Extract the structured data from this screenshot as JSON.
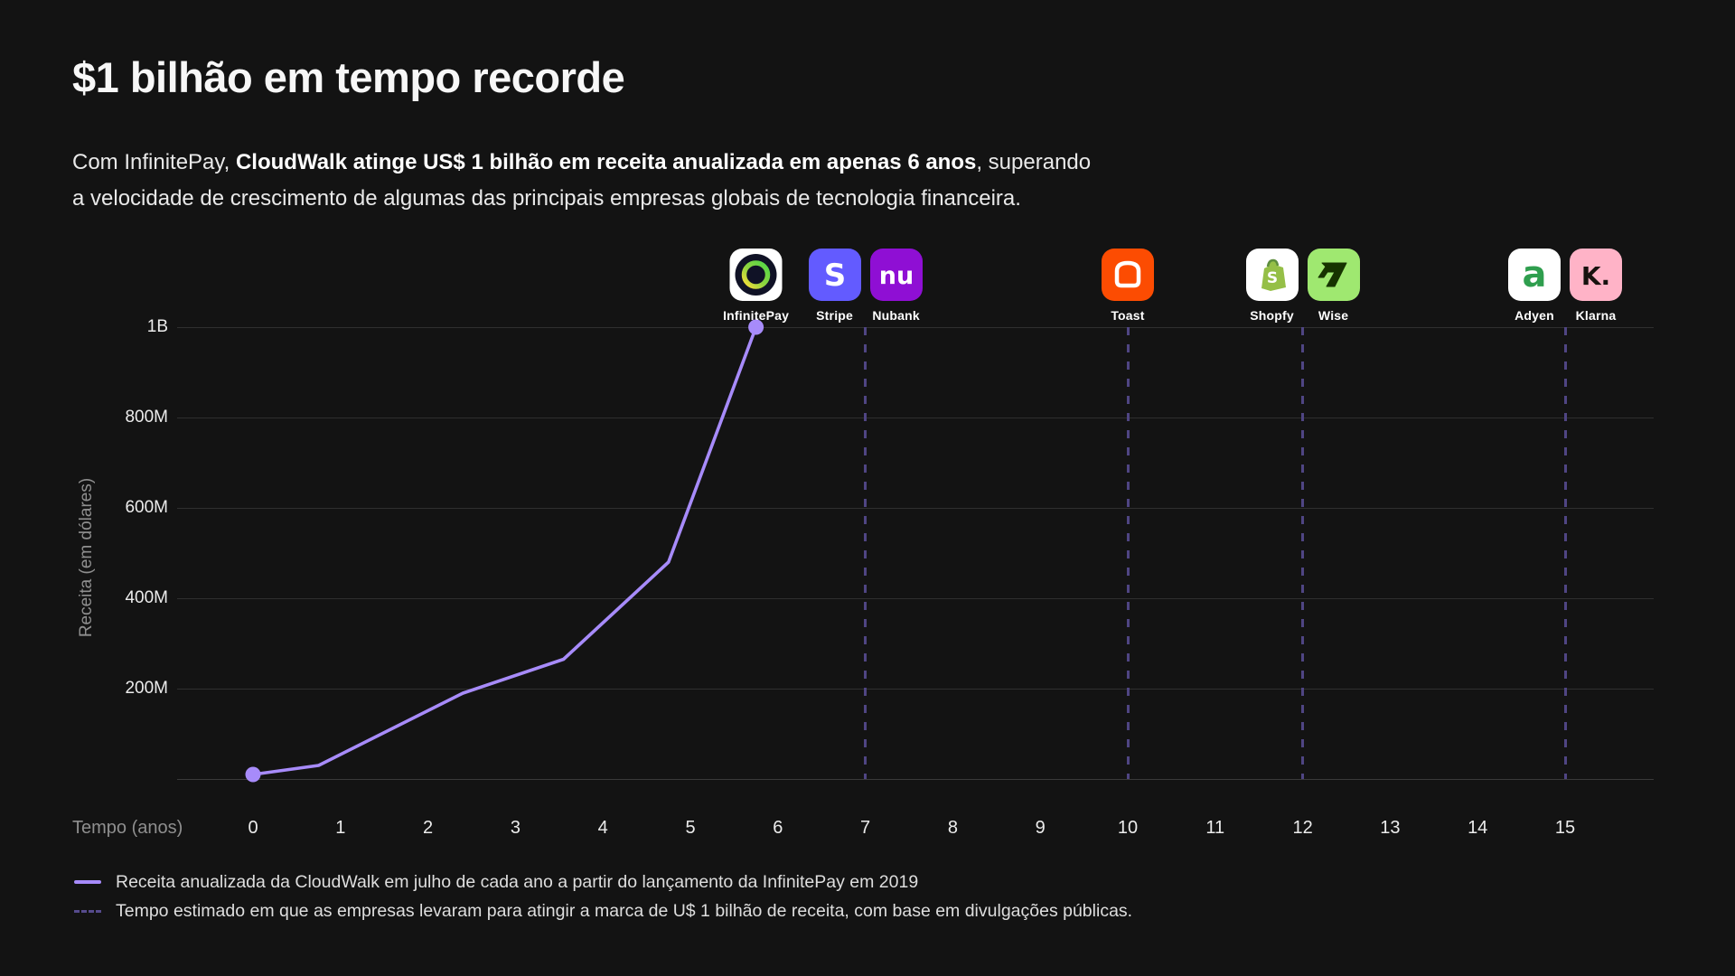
{
  "page": {
    "background": "#131313"
  },
  "header": {
    "title": "$1 bilhão em tempo recorde",
    "subtitle": {
      "prefix": "Com InfinitePay, ",
      "bold": "CloudWalk atinge US$ 1 bilhão em receita anualizada em apenas 6 anos",
      "suffix": ", superando",
      "line2": "a velocidade de crescimento de algumas das principais empresas globais de tecnologia financeira."
    }
  },
  "chart_data": {
    "type": "line",
    "title": "$1 bilhão em tempo recorde",
    "xlabel": "Tempo (anos)",
    "ylabel": "Receita (em dólares)",
    "x_ticks": [
      0,
      1,
      2,
      3,
      4,
      5,
      6,
      7,
      8,
      9,
      10,
      11,
      12,
      13,
      14,
      15
    ],
    "y_ticks": [
      {
        "label": "1B",
        "value": 1000
      },
      {
        "label": "800M",
        "value": 800
      },
      {
        "label": "600M",
        "value": 600
      },
      {
        "label": "400M",
        "value": 400
      },
      {
        "label": "200M",
        "value": 200
      }
    ],
    "ylim": [
      0,
      1000
    ],
    "xlim": [
      -0.85,
      16
    ],
    "grid": "horizontal",
    "legend_position": "bottom-left",
    "line_color": "#a78bfa",
    "milestone_line_color": "#4f4583",
    "series": [
      {
        "name": "Receita anualizada da CloudWalk",
        "unit": "USD milhões",
        "points": [
          [
            0,
            10
          ],
          [
            0.75,
            30
          ],
          [
            2.4,
            190
          ],
          [
            3.55,
            265
          ],
          [
            4.75,
            480
          ],
          [
            5.75,
            1000
          ]
        ]
      }
    ],
    "milestone_years": [
      7,
      10,
      12,
      15
    ],
    "logos": [
      {
        "id": "infinitepay",
        "label": "InfinitePay",
        "icon": "infinitepay-icon",
        "year": 5.75,
        "offset": 0,
        "bg": "#ffffff",
        "fg": "#52d14a"
      },
      {
        "id": "stripe",
        "label": "Stripe",
        "icon": "stripe-icon",
        "year": 7,
        "offset": -34,
        "bg": "#635bff",
        "fg": "#ffffff"
      },
      {
        "id": "nubank",
        "label": "Nubank",
        "icon": "nubank-icon",
        "year": 7,
        "offset": 34,
        "bg": "#8f0fd4",
        "fg": "#ffffff"
      },
      {
        "id": "toast",
        "label": "Toast",
        "icon": "toast-icon",
        "year": 10,
        "offset": 0,
        "bg": "#fc4c02",
        "fg": "#ffffff"
      },
      {
        "id": "shopfy",
        "label": "Shopfy",
        "icon": "shopfy-icon",
        "year": 12,
        "offset": -34,
        "bg": "#ffffff",
        "fg": "#95bf47"
      },
      {
        "id": "wise",
        "label": "Wise",
        "icon": "wise-icon",
        "year": 12,
        "offset": 34,
        "bg": "#9fe870",
        "fg": "#163300"
      },
      {
        "id": "adyen",
        "label": "Adyen",
        "icon": "adyen-icon",
        "year": 15,
        "offset": -34,
        "bg": "#ffffff",
        "fg": "#2f9e4e"
      },
      {
        "id": "klarna",
        "label": "Klarna",
        "icon": "klarna-icon",
        "year": 15,
        "offset": 34,
        "bg": "#ffb3c7",
        "fg": "#17120f"
      }
    ]
  },
  "legend": [
    {
      "swatch": "solid-line",
      "text": "Receita anualizada da CloudWalk em julho de cada ano a partir do lançamento da InfinitePay em 2019"
    },
    {
      "swatch": "dashed-line",
      "text": "Tempo estimado em que as empresas levaram para atingir a marca de U$ 1 bilhão de receita, com base em divulgações públicas."
    }
  ]
}
